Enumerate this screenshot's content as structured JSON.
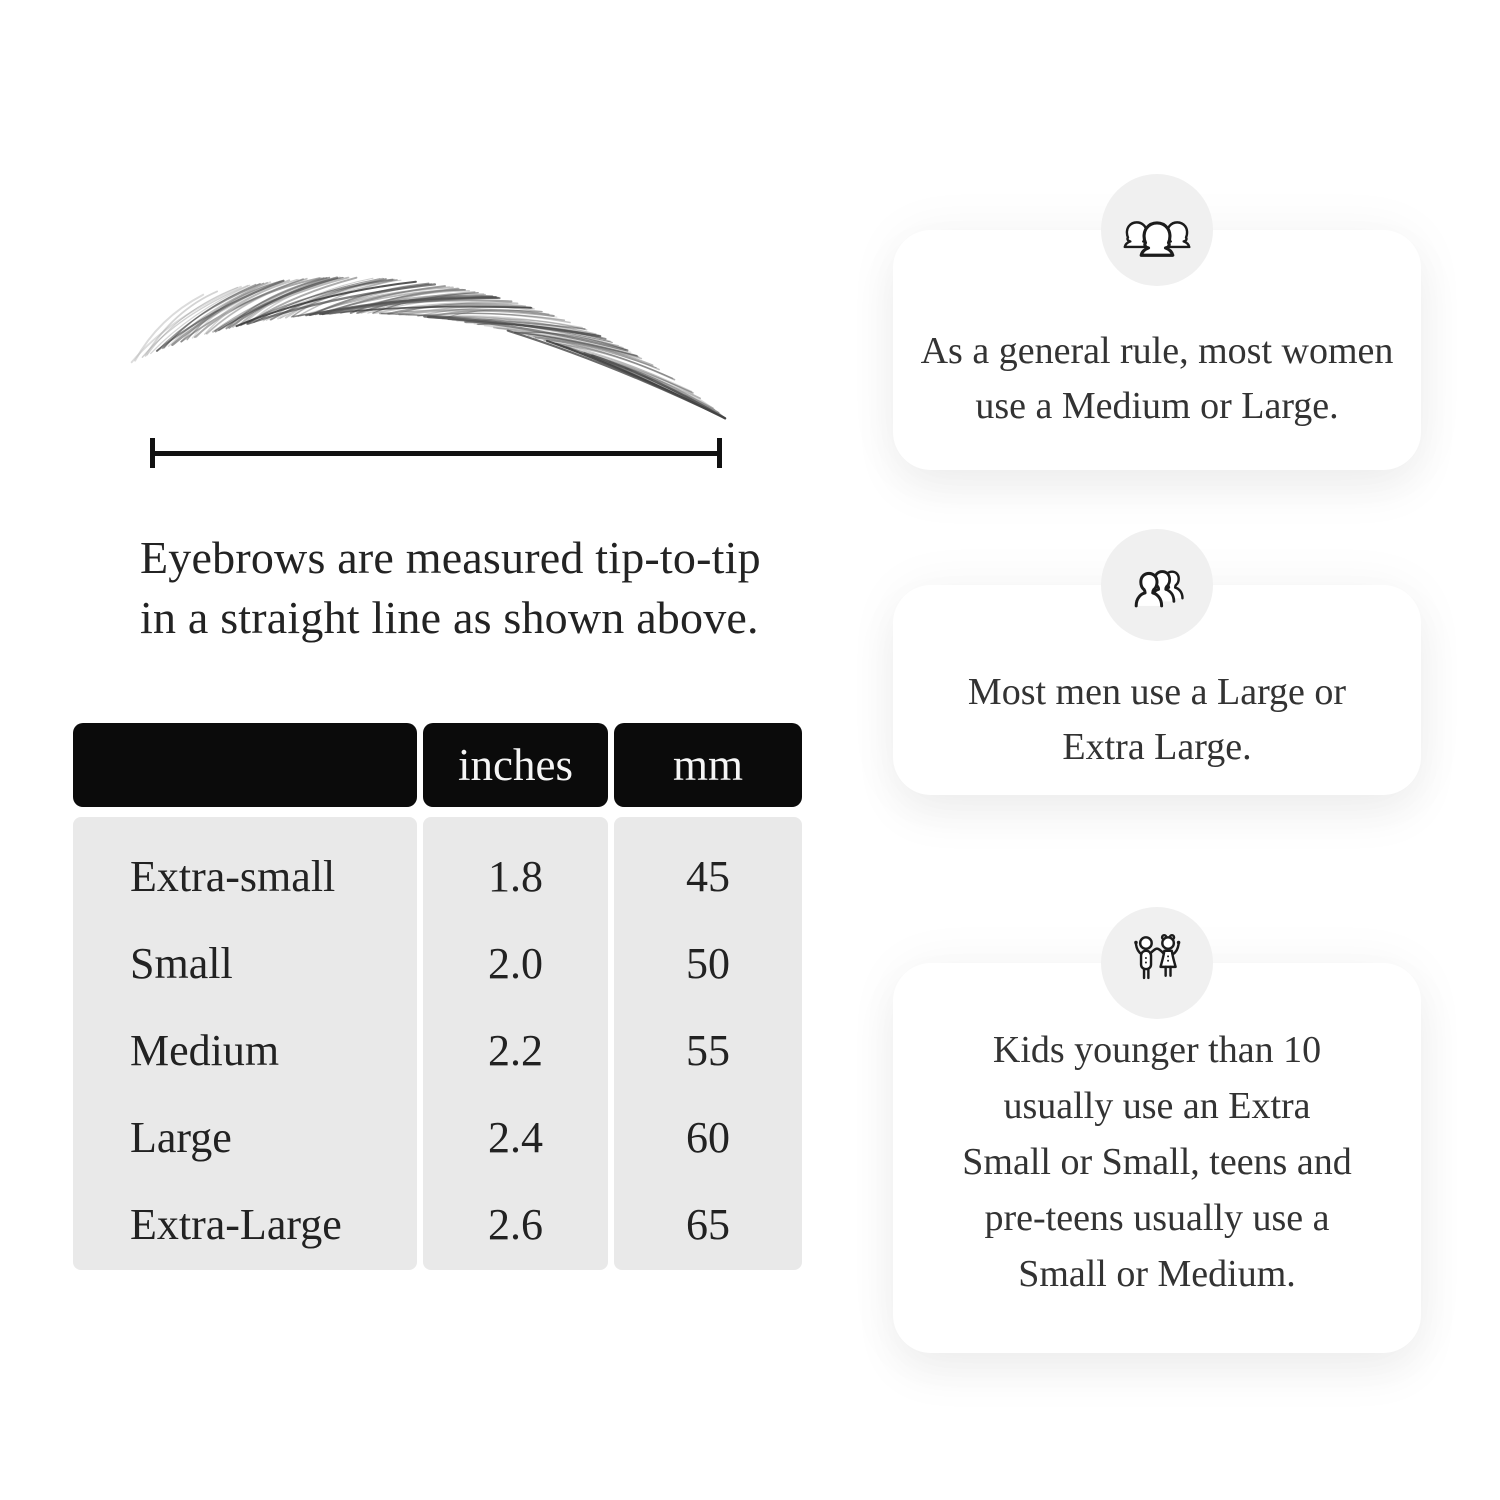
{
  "page": {
    "background": "#ffffff",
    "text_color": "#262626"
  },
  "figure": {
    "caption_lines": [
      "Eyebrows are measured tip-to-tip",
      "in a straight line as shown above."
    ]
  },
  "size_table": {
    "headers": [
      "",
      "inches",
      "mm"
    ],
    "rows": [
      {
        "size": "Extra-small",
        "inches": "1.8",
        "mm": "45"
      },
      {
        "size": "Small",
        "inches": "2.0",
        "mm": "50"
      },
      {
        "size": "Medium",
        "inches": "2.2",
        "mm": "55"
      },
      {
        "size": "Large",
        "inches": "2.4",
        "mm": "60"
      },
      {
        "size": "Extra-Large",
        "inches": "2.6",
        "mm": "65"
      }
    ],
    "colors": {
      "header_bg": "#0b0b0b",
      "header_text": "#f5f5f5",
      "body_bg": "#e9e9e9",
      "body_text": "#222222"
    }
  },
  "cards": [
    {
      "icon": "women-icon",
      "lines": [
        "As a general rule, most women",
        "use a Medium or Large."
      ]
    },
    {
      "icon": "men-icon",
      "lines": [
        "Most men use a Large or",
        "Extra Large."
      ]
    },
    {
      "icon": "kids-icon",
      "lines": [
        "Kids younger than 10",
        "usually use an Extra",
        "Small or Small, teens and",
        "pre-teens usually use a",
        "Small or Medium."
      ]
    }
  ],
  "icon_colors": {
    "stroke": "#1c1c1c",
    "circle_bg": "#f0f0f0"
  }
}
